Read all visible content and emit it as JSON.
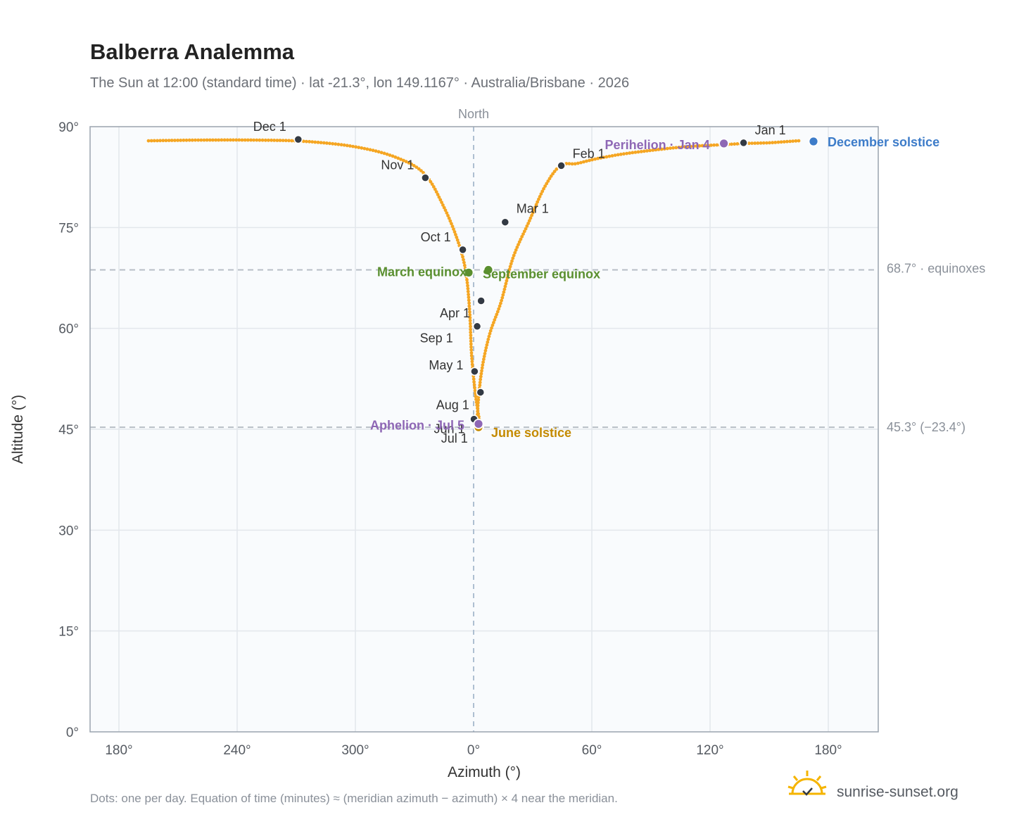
{
  "title": "Balberra Analemma",
  "subtitle": "The Sun at 12:00 (standard time) · lat -21.3°, lon 149.1167° · Australia/Brisbane · 2026",
  "footnote": "Dots: one per day. Equation of time (minutes) ≈ (meridian azimuth − azimuth) × 4 near the meridian.",
  "brand": {
    "name": "sunrise-sunset.org",
    "logo_icon": "sun-check-icon"
  },
  "colors": {
    "curve": "#f5a623",
    "date_dot": "#333a44",
    "equinox": "#5a8f2f",
    "solstice_june": "#c48a00",
    "solstice_december": "#3d7cc9",
    "apsis": "#8e67b5",
    "plot_bg": "#f9fbfd",
    "grid": "#e3e7ec",
    "reference": "#b8bec6"
  },
  "chart_data": {
    "type": "scatter",
    "title": "Balberra Analemma",
    "xlabel": "Azimuth (°)",
    "ylabel": "Altitude (°)",
    "x_scale": "azimuth offset from North (−180 to +180 on screen)",
    "xlim": [
      -180,
      180
    ],
    "ylim": [
      0,
      90
    ],
    "x_ticks": [
      "180°",
      "240°",
      "300°",
      "0°",
      "60°",
      "120°",
      "180°"
    ],
    "y_ticks": [
      "0°",
      "15°",
      "30°",
      "45°",
      "60°",
      "75°",
      "90°"
    ],
    "grid": true,
    "meridian_label": "North",
    "reference_lines": [
      {
        "altitude": 68.7,
        "label": "68.7° · equinoxes"
      },
      {
        "altitude": 45.3,
        "label": "45.3° (−23.4°)"
      }
    ],
    "series": [
      {
        "points_azimuth_offset": [
          165,
          160,
          150,
          138,
          125,
          112,
          100,
          88,
          75,
          62,
          52,
          44,
          36,
          28,
          20,
          14,
          8,
          4,
          2,
          3,
          3,
          1,
          -1,
          -2,
          -4,
          -8,
          -15,
          -25,
          -40,
          -60,
          -85,
          -110,
          -140,
          -165
        ],
        "points_altitude": [
          87.9,
          87.8,
          87.6,
          87.5,
          87.3,
          87.1,
          86.8,
          86.4,
          85.9,
          85.2,
          84.5,
          84.2,
          81.0,
          75.8,
          70.5,
          64.0,
          59.0,
          53.5,
          47.5,
          45.4,
          46.2,
          50.0,
          56.0,
          62.5,
          68.5,
          73.0,
          78.0,
          83.0,
          85.5,
          87.0,
          87.8,
          88.0,
          88.0,
          87.9
        ]
      }
    ],
    "date_markers": [
      {
        "label": "Jan 1",
        "az": 137,
        "alt": 87.6
      },
      {
        "label": "Feb 1",
        "az": 44.5,
        "alt": 84.2
      },
      {
        "label": "Mar 1",
        "az": 16,
        "alt": 75.8
      },
      {
        "label": "Apr 1",
        "az": 1.8,
        "alt": 60.3
      },
      {
        "label": "May 1",
        "az": 0.5,
        "alt": 53.6
      },
      {
        "label": "Jun 1",
        "az": 0.2,
        "alt": 46.5
      },
      {
        "label": "Jul 1",
        "az": 2.8,
        "alt": 45.4
      },
      {
        "label": "Aug 1",
        "az": 3.5,
        "alt": 50.5
      },
      {
        "label": "Sep 1",
        "az": 3.8,
        "alt": 64.1
      },
      {
        "label": "Oct 1",
        "az": -5.5,
        "alt": 71.7
      },
      {
        "label": "Nov 1",
        "az": -24.5,
        "alt": 82.4
      },
      {
        "label": "Dec 1",
        "az": -89,
        "alt": 88.1
      }
    ],
    "events": [
      {
        "label": "March equinox",
        "az": -2.5,
        "alt": 68.3,
        "kind": "equinox"
      },
      {
        "label": "September equinox",
        "az": 7.5,
        "alt": 68.7,
        "kind": "equinox"
      },
      {
        "label": "June solstice",
        "az": 2.5,
        "alt": 45.3,
        "kind": "solstice_june"
      },
      {
        "label": "December solstice",
        "az": 172.5,
        "alt": 87.8,
        "kind": "solstice_december"
      },
      {
        "label": "Perihelion · Jan 4",
        "az": 127,
        "alt": 87.5,
        "kind": "apsis"
      },
      {
        "label": "Aphelion · Jul 5",
        "az": 2.5,
        "alt": 45.8,
        "kind": "apsis"
      }
    ]
  }
}
